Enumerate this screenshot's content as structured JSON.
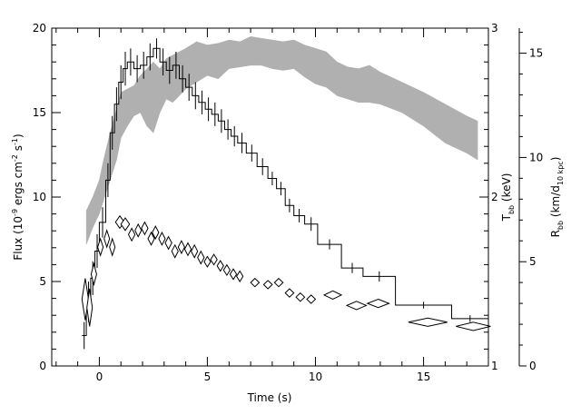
{
  "chart_data": {
    "type": "line",
    "xlabel": "Time (s)",
    "ylabel_left": {
      "main": "Flux (10",
      "sup1": "-9",
      "mid": " ergs cm",
      "sup2": "-2",
      "mid2": " s",
      "sup3": "-1",
      "end": ")"
    },
    "ylabel_right1": {
      "main": "T",
      "sub": "bb",
      "end": " (keV)"
    },
    "ylabel_right2": {
      "main": "R",
      "sub": "bb",
      "mid": " (km/d",
      "sub2": "10 kpc",
      "end": ")"
    },
    "xlim": [
      -2.2,
      18.0
    ],
    "ylim_flux": [
      0,
      20
    ],
    "ylim_temp": [
      1,
      3
    ],
    "ylim_radius": [
      0,
      16.2
    ],
    "xticks": [
      0,
      5,
      10,
      15
    ],
    "yticks_flux": [
      0,
      5,
      10,
      15,
      20
    ],
    "yticks_temp": [
      1,
      2,
      3
    ],
    "yticks_radius": [
      0,
      5,
      10,
      15
    ],
    "series": [
      {
        "style": "histogram-errorbars",
        "axis": "flux",
        "points": [
          {
            "x0": -0.8,
            "x1": -0.6,
            "y": 1.8,
            "err": 0.8
          },
          {
            "x0": -0.6,
            "x1": -0.4,
            "y": 3.8,
            "err": 1.2
          },
          {
            "x0": -0.4,
            "x1": -0.2,
            "y": 5.2,
            "err": 1.0
          },
          {
            "x0": -0.2,
            "x1": 0.0,
            "y": 6.8,
            "err": 1.0
          },
          {
            "x0": 0.0,
            "x1": 0.3,
            "y": 8.5,
            "err": 0.9
          },
          {
            "x0": 0.3,
            "x1": 0.5,
            "y": 11.0,
            "err": 1.0
          },
          {
            "x0": 0.5,
            "x1": 0.7,
            "y": 13.8,
            "err": 1.0
          },
          {
            "x0": 0.7,
            "x1": 0.9,
            "y": 15.5,
            "err": 1.0
          },
          {
            "x0": 0.9,
            "x1": 1.1,
            "y": 16.8,
            "err": 1.0
          },
          {
            "x0": 1.1,
            "x1": 1.3,
            "y": 17.6,
            "err": 1.0
          },
          {
            "x0": 1.3,
            "x1": 1.6,
            "y": 18.0,
            "err": 0.8
          },
          {
            "x0": 1.6,
            "x1": 1.9,
            "y": 17.6,
            "err": 0.8
          },
          {
            "x0": 1.9,
            "x1": 2.2,
            "y": 17.8,
            "err": 0.8
          },
          {
            "x0": 2.2,
            "x1": 2.5,
            "y": 18.3,
            "err": 0.8
          },
          {
            "x0": 2.5,
            "x1": 2.8,
            "y": 18.8,
            "err": 0.6
          },
          {
            "x0": 2.8,
            "x1": 3.1,
            "y": 18.0,
            "err": 0.8
          },
          {
            "x0": 3.1,
            "x1": 3.4,
            "y": 17.5,
            "err": 0.8
          },
          {
            "x0": 3.4,
            "x1": 3.7,
            "y": 17.8,
            "err": 0.8
          },
          {
            "x0": 3.7,
            "x1": 4.0,
            "y": 17.0,
            "err": 0.8
          },
          {
            "x0": 4.0,
            "x1": 4.3,
            "y": 16.5,
            "err": 0.8
          },
          {
            "x0": 4.3,
            "x1": 4.6,
            "y": 16.0,
            "err": 0.8
          },
          {
            "x0": 4.6,
            "x1": 4.9,
            "y": 15.6,
            "err": 0.7
          },
          {
            "x0": 4.9,
            "x1": 5.2,
            "y": 15.2,
            "err": 0.7
          },
          {
            "x0": 5.2,
            "x1": 5.5,
            "y": 14.9,
            "err": 0.7
          },
          {
            "x0": 5.5,
            "x1": 5.8,
            "y": 14.5,
            "err": 0.7
          },
          {
            "x0": 5.8,
            "x1": 6.1,
            "y": 14.0,
            "err": 0.6
          },
          {
            "x0": 6.1,
            "x1": 6.4,
            "y": 13.6,
            "err": 0.6
          },
          {
            "x0": 6.4,
            "x1": 6.8,
            "y": 13.2,
            "err": 0.6
          },
          {
            "x0": 6.8,
            "x1": 7.3,
            "y": 12.6,
            "err": 0.5
          },
          {
            "x0": 7.3,
            "x1": 7.8,
            "y": 11.8,
            "err": 0.5
          },
          {
            "x0": 7.8,
            "x1": 8.2,
            "y": 11.1,
            "err": 0.4
          },
          {
            "x0": 8.2,
            "x1": 8.6,
            "y": 10.5,
            "err": 0.4
          },
          {
            "x0": 8.6,
            "x1": 9.0,
            "y": 9.5,
            "err": 0.4
          },
          {
            "x0": 9.0,
            "x1": 9.5,
            "y": 8.9,
            "err": 0.4
          },
          {
            "x0": 9.5,
            "x1": 10.1,
            "y": 8.4,
            "err": 0.4
          },
          {
            "x0": 10.1,
            "x1": 11.2,
            "y": 7.2,
            "err": 0.3
          },
          {
            "x0": 11.2,
            "x1": 12.2,
            "y": 5.8,
            "err": 0.3
          },
          {
            "x0": 12.2,
            "x1": 13.7,
            "y": 5.3,
            "err": 0.3
          },
          {
            "x0": 13.7,
            "x1": 16.3,
            "y": 3.6,
            "err": 0.2
          },
          {
            "x0": 16.3,
            "x1": 18.0,
            "y": 2.8,
            "err": 0.2
          }
        ]
      },
      {
        "style": "band",
        "axis": "temperature",
        "x": [
          -0.6,
          -0.3,
          0.0,
          0.2,
          0.5,
          0.8,
          1.0,
          1.3,
          1.6,
          1.9,
          2.2,
          2.5,
          2.8,
          3.1,
          3.4,
          3.7,
          4.0,
          4.5,
          5.0,
          5.5,
          6.0,
          6.5,
          7.0,
          7.5,
          8.0,
          8.5,
          9.0,
          9.5,
          10.0,
          10.5,
          11.0,
          11.5,
          12.0,
          12.5,
          13.0,
          14.0,
          15.0,
          16.0,
          17.0,
          17.5
        ],
        "upper": [
          1.92,
          2.0,
          2.1,
          2.22,
          2.38,
          2.52,
          2.62,
          2.64,
          2.66,
          2.72,
          2.76,
          2.8,
          2.76,
          2.82,
          2.84,
          2.86,
          2.88,
          2.92,
          2.9,
          2.91,
          2.93,
          2.92,
          2.95,
          2.94,
          2.93,
          2.92,
          2.93,
          2.9,
          2.88,
          2.86,
          2.8,
          2.77,
          2.76,
          2.78,
          2.74,
          2.68,
          2.62,
          2.55,
          2.48,
          2.45
        ],
        "lower": [
          1.72,
          1.82,
          1.9,
          1.98,
          2.1,
          2.22,
          2.35,
          2.42,
          2.48,
          2.5,
          2.42,
          2.38,
          2.5,
          2.58,
          2.56,
          2.6,
          2.64,
          2.68,
          2.72,
          2.7,
          2.76,
          2.77,
          2.78,
          2.78,
          2.76,
          2.75,
          2.76,
          2.71,
          2.67,
          2.65,
          2.6,
          2.58,
          2.56,
          2.56,
          2.55,
          2.5,
          2.42,
          2.32,
          2.26,
          2.22
        ]
      },
      {
        "style": "diamonds",
        "axis": "radius",
        "points": [
          {
            "x": -0.65,
            "y": 3.2,
            "hw": 0.15,
            "hh": 1.0
          },
          {
            "x": -0.45,
            "y": 2.8,
            "hw": 0.12,
            "hh": 0.9
          },
          {
            "x": -0.25,
            "y": 4.4,
            "hw": 0.1,
            "hh": 0.5
          },
          {
            "x": 0.05,
            "y": 5.7,
            "hw": 0.1,
            "hh": 0.4
          },
          {
            "x": 0.35,
            "y": 6.1,
            "hw": 0.1,
            "hh": 0.4
          },
          {
            "x": 0.6,
            "y": 5.7,
            "hw": 0.1,
            "hh": 0.4
          },
          {
            "x": 0.95,
            "y": 6.9,
            "hw": 0.2,
            "hh": 0.3
          },
          {
            "x": 1.2,
            "y": 6.8,
            "hw": 0.2,
            "hh": 0.3
          },
          {
            "x": 1.5,
            "y": 6.3,
            "hw": 0.15,
            "hh": 0.3
          },
          {
            "x": 1.8,
            "y": 6.5,
            "hw": 0.15,
            "hh": 0.3
          },
          {
            "x": 2.1,
            "y": 6.6,
            "hw": 0.15,
            "hh": 0.3
          },
          {
            "x": 2.4,
            "y": 6.1,
            "hw": 0.15,
            "hh": 0.3
          },
          {
            "x": 2.6,
            "y": 6.4,
            "hw": 0.15,
            "hh": 0.3
          },
          {
            "x": 2.9,
            "y": 6.1,
            "hw": 0.15,
            "hh": 0.3
          },
          {
            "x": 3.2,
            "y": 5.9,
            "hw": 0.15,
            "hh": 0.3
          },
          {
            "x": 3.5,
            "y": 5.5,
            "hw": 0.15,
            "hh": 0.3
          },
          {
            "x": 3.8,
            "y": 5.7,
            "hw": 0.15,
            "hh": 0.3
          },
          {
            "x": 4.1,
            "y": 5.6,
            "hw": 0.15,
            "hh": 0.3
          },
          {
            "x": 4.4,
            "y": 5.5,
            "hw": 0.15,
            "hh": 0.3
          },
          {
            "x": 4.7,
            "y": 5.2,
            "hw": 0.15,
            "hh": 0.3
          },
          {
            "x": 5.0,
            "y": 5.0,
            "hw": 0.15,
            "hh": 0.25
          },
          {
            "x": 5.3,
            "y": 5.1,
            "hw": 0.15,
            "hh": 0.25
          },
          {
            "x": 5.6,
            "y": 4.8,
            "hw": 0.15,
            "hh": 0.25
          },
          {
            "x": 5.9,
            "y": 4.6,
            "hw": 0.15,
            "hh": 0.25
          },
          {
            "x": 6.2,
            "y": 4.4,
            "hw": 0.15,
            "hh": 0.25
          },
          {
            "x": 6.5,
            "y": 4.3,
            "hw": 0.15,
            "hh": 0.25
          },
          {
            "x": 7.2,
            "y": 4.0,
            "hw": 0.2,
            "hh": 0.2
          },
          {
            "x": 7.8,
            "y": 3.9,
            "hw": 0.2,
            "hh": 0.2
          },
          {
            "x": 8.3,
            "y": 4.0,
            "hw": 0.2,
            "hh": 0.2
          },
          {
            "x": 8.8,
            "y": 3.5,
            "hw": 0.2,
            "hh": 0.2
          },
          {
            "x": 9.3,
            "y": 3.3,
            "hw": 0.2,
            "hh": 0.2
          },
          {
            "x": 9.8,
            "y": 3.2,
            "hw": 0.2,
            "hh": 0.2
          },
          {
            "x": 10.8,
            "y": 3.4,
            "hw": 0.4,
            "hh": 0.2
          },
          {
            "x": 11.9,
            "y": 2.9,
            "hw": 0.45,
            "hh": 0.2
          },
          {
            "x": 12.9,
            "y": 3.0,
            "hw": 0.5,
            "hh": 0.2
          },
          {
            "x": 15.2,
            "y": 2.1,
            "hw": 0.9,
            "hh": 0.2
          },
          {
            "x": 17.3,
            "y": 1.9,
            "hw": 0.8,
            "hh": 0.2
          }
        ]
      }
    ]
  },
  "colors": {
    "band": "#b0b0b0",
    "ink": "#000000",
    "background": "#ffffff"
  }
}
